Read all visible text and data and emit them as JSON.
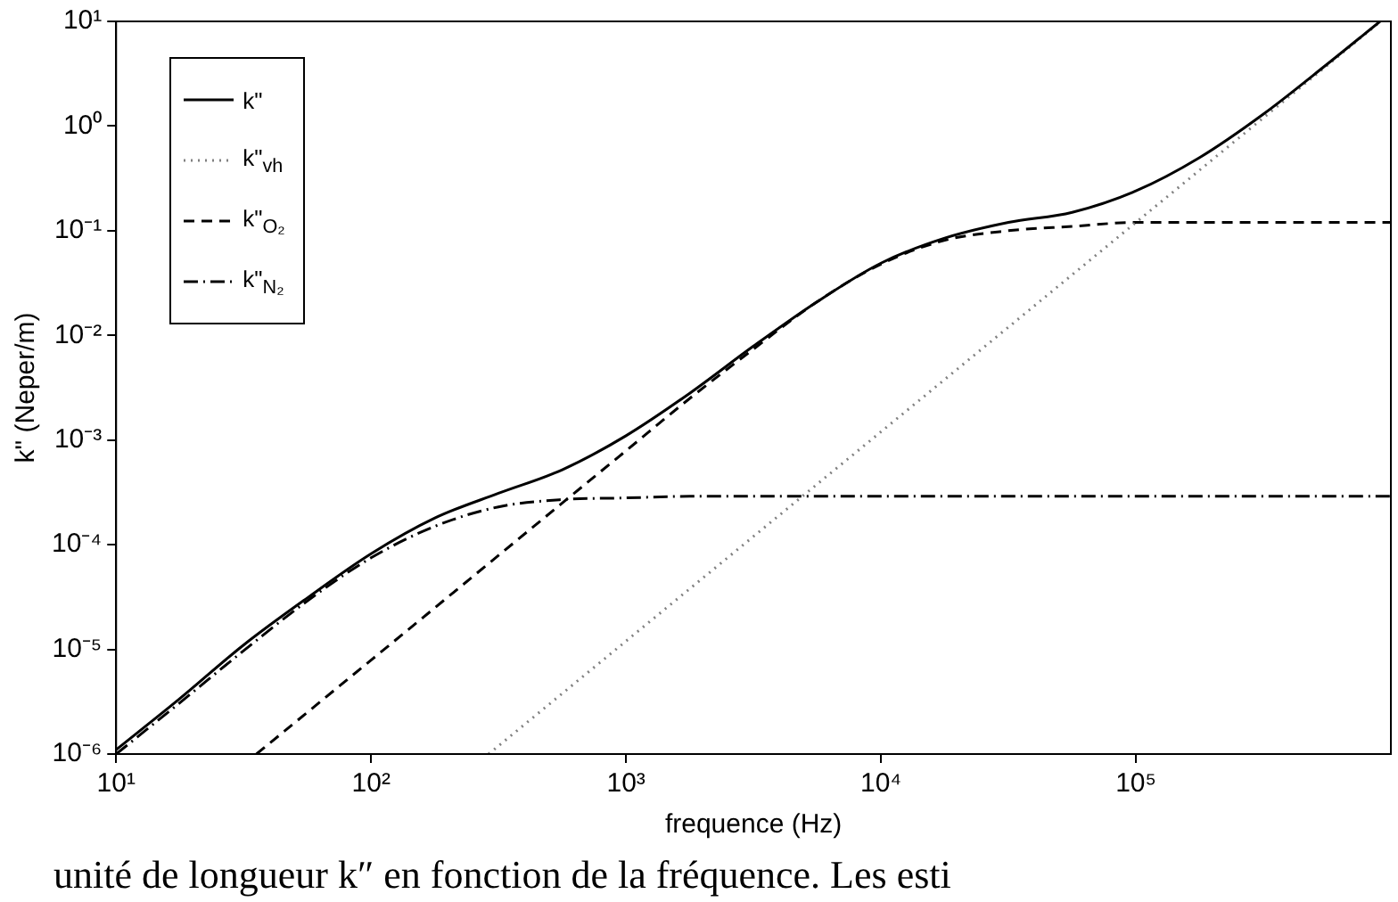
{
  "chart_data": {
    "type": "line",
    "xlabel": "frequence (Hz)",
    "ylabel": "k\" (Neper/m)",
    "log": "xy",
    "marker": "none",
    "legend": "top left",
    "grid": false,
    "xlim": [
      10,
      1000000
    ],
    "xticks": [
      {
        "value": 10,
        "label": "10¹"
      },
      {
        "value": 100,
        "label": "10²"
      },
      {
        "value": 1000,
        "label": "10³"
      },
      {
        "value": 10000,
        "label": "10⁴"
      },
      {
        "value": 100000,
        "label": "10⁵"
      }
    ],
    "ylim": [
      1e-06,
      10
    ],
    "yticks": [
      {
        "value": 1e-06,
        "label": "10⁻⁶"
      },
      {
        "value": 1e-05,
        "label": "10⁻⁵"
      },
      {
        "value": 0.0001,
        "label": "10⁻⁴"
      },
      {
        "value": 0.001,
        "label": "10⁻³"
      },
      {
        "value": 0.01,
        "label": "10⁻²"
      },
      {
        "value": 0.1,
        "label": "10⁻¹"
      },
      {
        "value": 1,
        "label": "10⁰"
      },
      {
        "value": 10,
        "label": "10¹"
      }
    ],
    "series": [
      {
        "name": "k\"",
        "color": "#000000",
        "line_style": "solid",
        "x": [
          10,
          17.8,
          31.6,
          56.2,
          100,
          178,
          316,
          562,
          1000,
          1778,
          3162,
          5623,
          10000,
          17783,
          31623,
          56234,
          100000,
          177828,
          316228,
          562341,
          907000
        ],
        "values": [
          1.1e-06,
          3.4e-06,
          1.1e-05,
          3.1e-05,
          8.2e-05,
          0.00018,
          0.00031,
          0.00052,
          0.0011,
          0.0028,
          0.0079,
          0.021,
          0.049,
          0.085,
          0.12,
          0.15,
          0.24,
          0.5,
          1.3,
          3.9,
          10
        ]
      },
      {
        "name": "k\"$_{vh}$",
        "color": "#808080",
        "line_style": "dotted",
        "x": [
          289,
          1000,
          10000,
          100000,
          913000
        ],
        "values": [
          1e-06,
          1.2e-05,
          0.0012,
          0.12,
          10
        ]
      },
      {
        "name": "k\"$_{O₂}$",
        "color": "#000000",
        "line_style": "dashed",
        "x": [
          35.5,
          56.2,
          100,
          178,
          316,
          562,
          1000,
          1778,
          3162,
          5623,
          10000,
          17783,
          31623,
          56234,
          100000,
          177828,
          316228,
          562341,
          1000000
        ],
        "values": [
          1e-06,
          2.5e-06,
          7.9e-06,
          2.5e-05,
          7.9e-05,
          0.00025,
          0.00079,
          0.0025,
          0.0074,
          0.021,
          0.048,
          0.081,
          0.1,
          0.11,
          0.12,
          0.12,
          0.12,
          0.12,
          0.12
        ]
      },
      {
        "name": "k\"$_{N₂}$",
        "color": "#000000",
        "line_style": "dashdot",
        "x": [
          10,
          17.8,
          31.6,
          56.2,
          100,
          178,
          316,
          562,
          1000,
          1778,
          3162,
          5623,
          10000,
          100000,
          1000000
        ],
        "values": [
          1e-06,
          3.1e-06,
          9.7e-06,
          2.9e-05,
          7.5e-05,
          0.00015,
          0.00023,
          0.00027,
          0.00028,
          0.00029,
          0.00029,
          0.00029,
          0.00029,
          0.00029,
          0.00029
        ]
      }
    ],
    "annotations": [
      "unité de longueur k″ en fonction de la fréquence. Les esti"
    ]
  }
}
